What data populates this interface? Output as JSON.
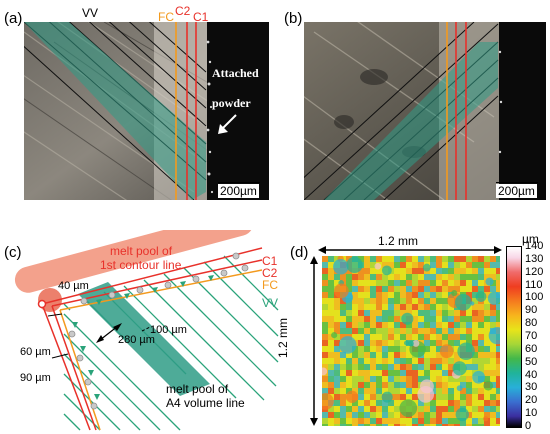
{
  "figure": {
    "panels": {
      "a": {
        "label": "(a)",
        "line_labels": [
          "VV",
          "FC",
          "C2",
          "C1"
        ],
        "annotation_line1": "Attached",
        "annotation_line2": "powder",
        "scale": "200µm"
      },
      "b": {
        "label": "(b)",
        "scale": "200µm"
      },
      "c": {
        "label": "(c)",
        "melt_pool_contour_line1": "melt pool of",
        "melt_pool_contour_line2": "1st contour line",
        "line_labels": [
          "C1",
          "C2",
          "FC",
          "VV"
        ],
        "dim_40": "40 µm",
        "dim_280": "280 µm",
        "dim_100": "100 µm",
        "dim_60": "60 µm",
        "dim_90": "90 µm",
        "melt_pool_volume_line1": "melt pool of",
        "melt_pool_volume_line2": "A4 volume line"
      },
      "d": {
        "label": "(d)",
        "width_label": "1.2 mm",
        "height_label": "1.2 mm",
        "colorbar_unit": "µm",
        "colorbar_ticks": [
          "140",
          "130",
          "120",
          "110",
          "100",
          "90",
          "80",
          "70",
          "60",
          "50",
          "40",
          "30",
          "20",
          "10",
          "0"
        ]
      }
    },
    "colors": {
      "contour_red": "#e8312a",
      "fc_orange": "#f39a1e",
      "vv_green": "#2aa37a",
      "melt_pool_pink": "#f19178",
      "melt_pool_teal": "#2f9c86"
    }
  }
}
